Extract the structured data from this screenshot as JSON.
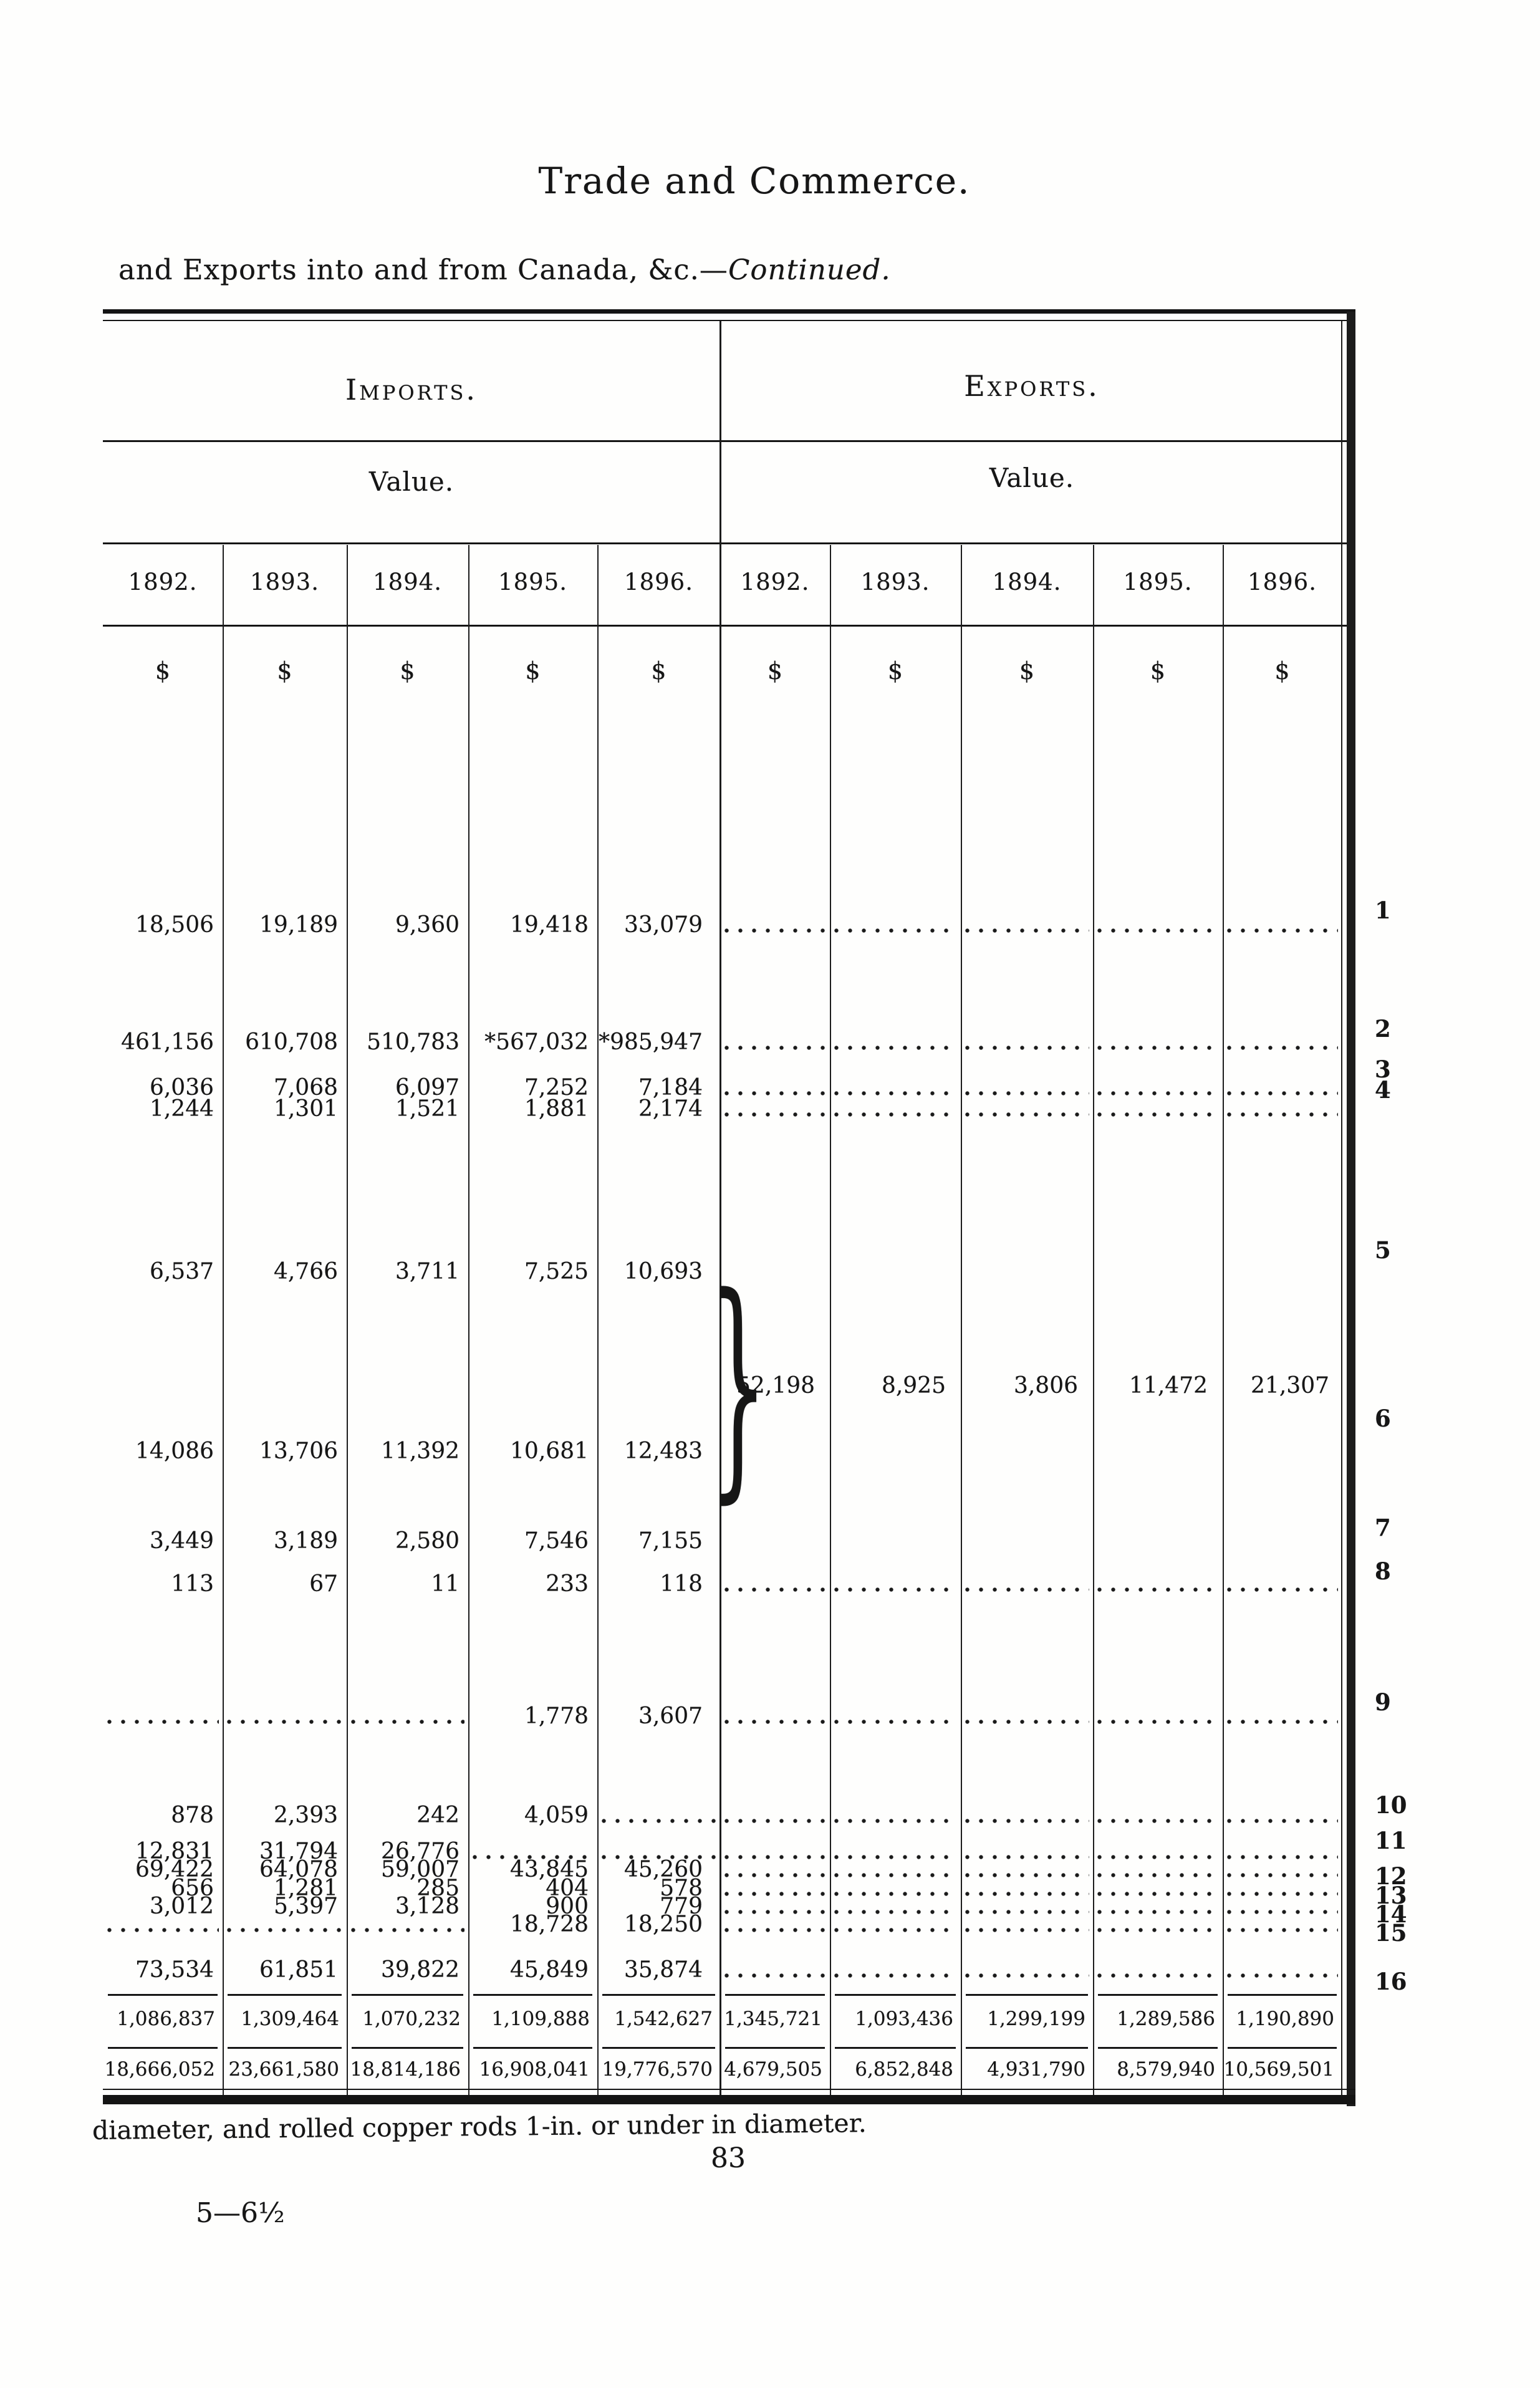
{
  "page": {
    "title": "Trade and Commerce.",
    "subtitle_roman": "and Exports into and from Canada, &c.—",
    "subtitle_italic": "Continued.",
    "footnote": "diameter, and rolled copper rods 1-in. or under in diameter.",
    "page_number": "83",
    "signature_mark": "5—6½",
    "bracket_glyph": "}"
  },
  "table": {
    "group_imports_label": "Imports.",
    "group_exports_label": "Exports.",
    "value_label": "Value.",
    "currency_symbol": "$",
    "years": [
      "1892.",
      "1893.",
      "1894.",
      "1895.",
      "1896."
    ],
    "rows": [
      {
        "num": "1",
        "imports": [
          "18,506",
          "19,189",
          "9,360",
          "19,418",
          "33,079"
        ],
        "exports": [
          null,
          null,
          null,
          null,
          null
        ]
      },
      {
        "num": "2",
        "imports": [
          "461,156",
          "610,708",
          "510,783",
          "*567,032",
          "*985,947"
        ],
        "exports": [
          null,
          null,
          null,
          null,
          null
        ]
      },
      {
        "num": "3",
        "imports": [
          "6,036",
          "7,068",
          "6,097",
          "7,252",
          "7,184"
        ],
        "exports": [
          null,
          null,
          null,
          null,
          null
        ]
      },
      {
        "num": "4",
        "imports": [
          "1,244",
          "1,301",
          "1,521",
          "1,881",
          "2,174"
        ],
        "exports": [
          null,
          null,
          null,
          null,
          null
        ]
      },
      {
        "num": "5",
        "imports": [
          "6,537",
          "4,766",
          "3,711",
          "7,525",
          "10,693"
        ],
        "exports": [
          "",
          "",
          "",
          "",
          ""
        ]
      },
      {
        "num": "6",
        "imports": [
          "14,086",
          "13,706",
          "11,392",
          "10,681",
          "12,483"
        ],
        "exports": [
          "",
          "",
          "",
          "",
          ""
        ]
      },
      {
        "num": "7",
        "imports": [
          "3,449",
          "3,189",
          "2,580",
          "7,546",
          "7,155"
        ],
        "exports": [
          "",
          "",
          "",
          "",
          ""
        ]
      },
      {
        "num": "8",
        "imports": [
          "113",
          "67",
          "11",
          "233",
          "118"
        ],
        "exports": [
          null,
          null,
          null,
          null,
          null
        ]
      },
      {
        "num": "9",
        "imports": [
          null,
          null,
          null,
          "1,778",
          "3,607"
        ],
        "exports": [
          null,
          null,
          null,
          null,
          null
        ]
      },
      {
        "num": "10",
        "imports": [
          "878",
          "2,393",
          "242",
          "4,059",
          null
        ],
        "exports": [
          null,
          null,
          null,
          null,
          null
        ]
      },
      {
        "num": "11",
        "imports": [
          "12,831",
          "31,794",
          "26,776",
          null,
          null
        ],
        "exports": [
          null,
          null,
          null,
          null,
          null
        ]
      },
      {
        "num": "12",
        "imports": [
          "69,422",
          "64,078",
          "59,007",
          "43,845",
          "45,260"
        ],
        "exports": [
          null,
          null,
          null,
          null,
          null
        ]
      },
      {
        "num": "13",
        "imports": [
          "656",
          "1,281",
          "285",
          "404",
          "578"
        ],
        "exports": [
          null,
          null,
          null,
          null,
          null
        ]
      },
      {
        "num": "14",
        "imports": [
          "3,012",
          "5,397",
          "3,128",
          "900",
          "779"
        ],
        "exports": [
          null,
          null,
          null,
          null,
          null
        ]
      },
      {
        "num": "15",
        "imports": [
          null,
          null,
          null,
          "18,728",
          "18,250"
        ],
        "exports": [
          null,
          null,
          null,
          null,
          null
        ]
      },
      {
        "num": "16",
        "imports": [
          "73,534",
          "61,851",
          "39,822",
          "45,849",
          "35,874"
        ],
        "exports": [
          null,
          null,
          null,
          null,
          null
        ]
      }
    ],
    "bracket_row": {
      "exports": [
        "52,198",
        "8,925",
        "3,806",
        "11,472",
        "21,307"
      ]
    },
    "total_rows": [
      {
        "imports": [
          "1,086,837",
          "1,309,464",
          "1,070,232",
          "1,109,888",
          "1,542,627"
        ],
        "exports": [
          "1,345,721",
          "1,093,436",
          "1,299,199",
          "1,289,586",
          "1,190,890"
        ]
      },
      {
        "imports": [
          "18,666,052",
          "23,661,580",
          "18,814,186",
          "16,908,041",
          "19,776,570"
        ],
        "exports": [
          "4,679,505",
          "6,852,848",
          "4,931,790",
          "8,579,940",
          "10,569,501"
        ]
      }
    ]
  }
}
